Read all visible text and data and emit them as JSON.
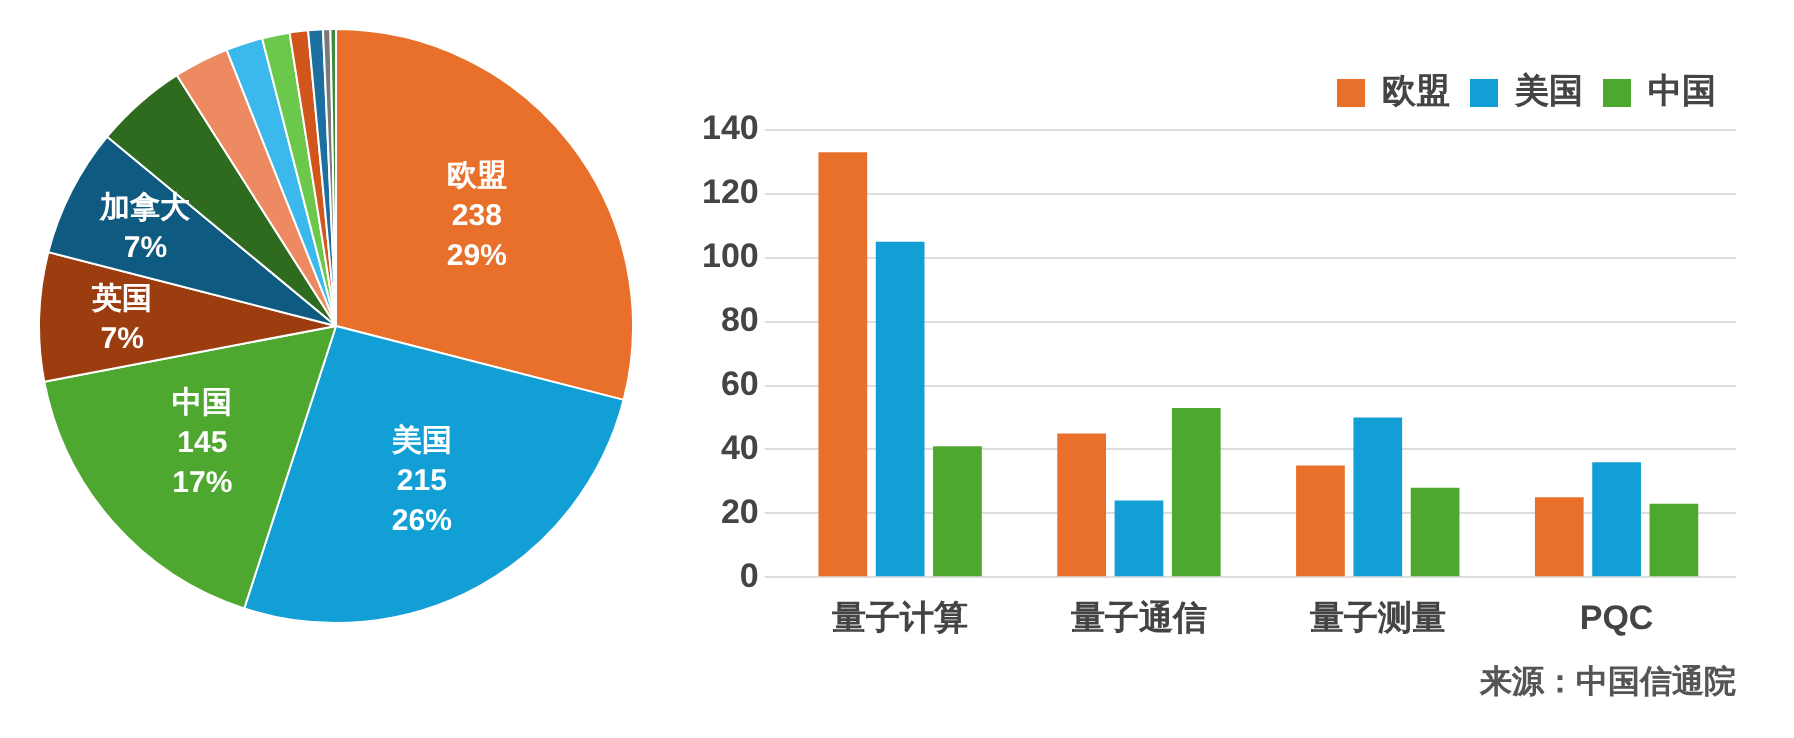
{
  "chart_data": [
    {
      "type": "pie",
      "categories": [
        "欧盟",
        "美国",
        "中国",
        "英国",
        "加拿大",
        null,
        null,
        null,
        null,
        null,
        null,
        null,
        null
      ],
      "values": [
        29,
        26,
        17,
        7,
        7,
        5,
        3,
        2,
        1.5,
        1,
        0.8,
        0.4,
        0.3
      ],
      "value_labels": [
        "238\n29%",
        "215\n26%",
        "145\n17%",
        "7%",
        "7%",
        null,
        null,
        null,
        null,
        null,
        null,
        null,
        null
      ],
      "colors": [
        "#e8702a",
        "#119fd6",
        "#4ea72e",
        "#9c3d10",
        "#0e5a80",
        "#2e6b1f",
        "#ee8a62",
        "#3bb8ec",
        "#6cc84a",
        "#d0561b",
        "#1d6fa0",
        "#7a7a7a",
        "#3d8a3d"
      ]
    },
    {
      "type": "bar",
      "categories": [
        "量子计算",
        "量子通信",
        "量子测量",
        "PQC"
      ],
      "series": [
        {
          "name": "欧盟",
          "color": "#e8702a",
          "values": [
            133,
            45,
            35,
            25
          ]
        },
        {
          "name": "美国",
          "color": "#119fd6",
          "values": [
            105,
            24,
            50,
            36
          ]
        },
        {
          "name": "中国",
          "color": "#4ea72e",
          "values": [
            41,
            53,
            28,
            23
          ]
        }
      ],
      "ylim": [
        0,
        140
      ],
      "yticks": [
        0,
        20,
        40,
        60,
        80,
        100,
        120,
        140
      ],
      "grid": "y",
      "legend": "top right",
      "annotations": [
        "来源：中国信通院"
      ]
    }
  ]
}
